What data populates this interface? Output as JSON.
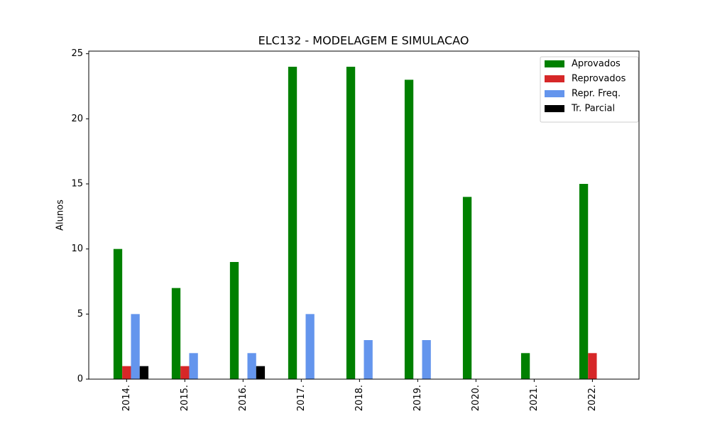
{
  "chart_data": {
    "type": "bar",
    "title": "ELC132 - MODELAGEM E SIMULACAO",
    "y_label": "Alunos",
    "categories": [
      "2014.",
      "2015.",
      "2016.",
      "2017.",
      "2018.",
      "2019.",
      "2020.",
      "2021.",
      "2022."
    ],
    "series": [
      {
        "name": "Aprovados",
        "color": "#008000",
        "values": [
          10,
          7,
          9,
          24,
          24,
          23,
          14,
          2,
          15
        ]
      },
      {
        "name": "Reprovados",
        "color": "#d62728",
        "values": [
          1,
          1,
          0,
          0,
          0,
          0,
          0,
          0,
          2
        ]
      },
      {
        "name": "Repr. Freq.",
        "color": "#6495ed",
        "values": [
          5,
          2,
          2,
          5,
          3,
          3,
          0,
          0,
          0
        ]
      },
      {
        "name": "Tr. Parcial",
        "color": "#000000",
        "values": [
          1,
          0,
          1,
          0,
          0,
          0,
          0,
          0,
          0
        ]
      }
    ],
    "ylim": [
      0,
      25.2
    ],
    "yticks": [
      0,
      5,
      10,
      15,
      20,
      25
    ],
    "grid": false,
    "legend": "upper right"
  }
}
